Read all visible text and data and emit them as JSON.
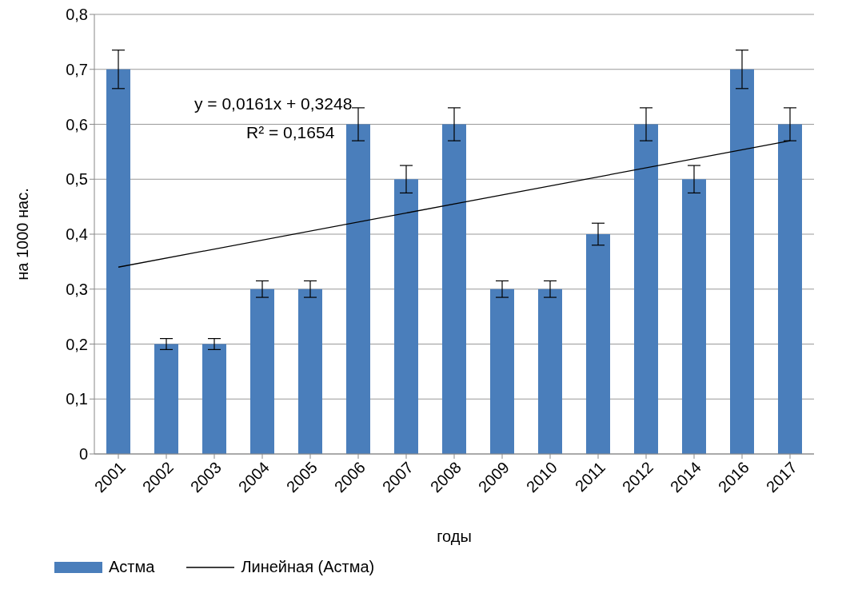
{
  "chart_data": {
    "type": "bar",
    "xlabel": "годы",
    "ylabel": "на 1000 нас.",
    "categories": [
      "2001",
      "2002",
      "2003",
      "2004",
      "2005",
      "2006",
      "2007",
      "2008",
      "2009",
      "2010",
      "2011",
      "2012",
      "2014",
      "2016",
      "2017"
    ],
    "series": [
      {
        "name": "Астма",
        "color": "#4a7ebb",
        "values": [
          0.7,
          0.2,
          0.2,
          0.3,
          0.3,
          0.6,
          0.5,
          0.6,
          0.3,
          0.3,
          0.4,
          0.6,
          0.5,
          0.7,
          0.6
        ],
        "errors": [
          0.035,
          0.01,
          0.01,
          0.015,
          0.015,
          0.03,
          0.025,
          0.03,
          0.015,
          0.015,
          0.02,
          0.03,
          0.025,
          0.035,
          0.03
        ]
      },
      {
        "type": "line",
        "name": "Линейная (Астма)",
        "color": "#000000",
        "values": [
          0.34,
          null,
          null,
          null,
          null,
          null,
          null,
          null,
          null,
          null,
          null,
          null,
          null,
          null,
          0.57
        ]
      }
    ],
    "ylim": [
      0,
      0.8
    ],
    "yticks": [
      0,
      {
        "value": 0.1,
        "label": "0,1"
      },
      {
        "value": 0.2,
        "label": "0,2"
      },
      {
        "value": 0.3,
        "label": "0,3"
      },
      {
        "value": 0.4,
        "label": "0,4"
      },
      {
        "value": 0.5,
        "label": "0,5"
      },
      {
        "value": 0.6,
        "label": "0,6"
      },
      {
        "value": 0.7,
        "label": "0,7"
      },
      {
        "value": 0.8,
        "label": "0,8"
      }
    ],
    "grid": "y",
    "legend": "bottom left",
    "marker": "none",
    "annotations": [
      "y = 0,0161x + 0,3248",
      "R² = 0,1654"
    ]
  }
}
